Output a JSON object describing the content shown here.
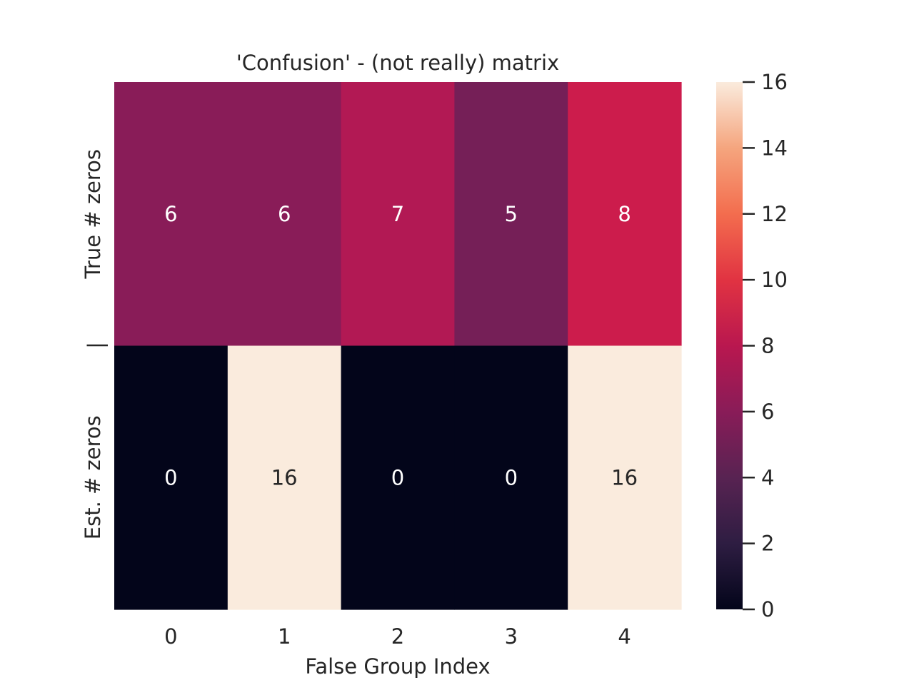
{
  "chart_data": {
    "type": "heatmap",
    "title": "'Confusion' - (not really) matrix",
    "xlabel": "False Group Index",
    "ylabel": "",
    "x_tick_labels": [
      "0",
      "1",
      "2",
      "3",
      "4"
    ],
    "row_labels": [
      "True # zeros",
      "Est. # zeros"
    ],
    "row_separator_label": "|",
    "values": [
      [
        6,
        6,
        7,
        5,
        8
      ],
      [
        0,
        16,
        0,
        0,
        16
      ]
    ],
    "annotations": [
      [
        "6",
        "6",
        "7",
        "5",
        "8"
      ],
      [
        "0",
        "16",
        "0",
        "0",
        "16"
      ]
    ],
    "colorbar": {
      "range": [
        0,
        16
      ],
      "ticks": [
        "0",
        "2",
        "4",
        "6",
        "8",
        "10",
        "12",
        "14",
        "16"
      ],
      "colormap": "rocket"
    },
    "colors": {
      "annotation_light": "#ffffff",
      "annotation_dark": "#262626",
      "text": "#262626"
    }
  }
}
